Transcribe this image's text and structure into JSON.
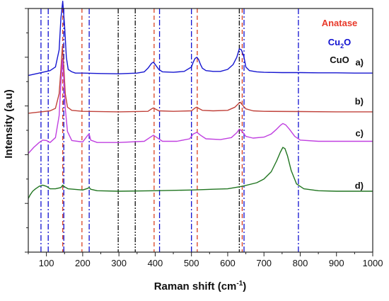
{
  "chart_data": {
    "type": "line",
    "title": "",
    "xlabel": "Raman shift (cm",
    "xlabel_sup": "-1",
    "xlabel_tail": ")",
    "ylabel": "Intensity (a.u)",
    "xlim": [
      50,
      1000
    ],
    "ylim": [
      0,
      10
    ],
    "xticks": [
      100,
      200,
      300,
      400,
      500,
      600,
      700,
      800,
      900,
      1000
    ],
    "grid": false,
    "legend": {
      "placement": "top-right",
      "entries": [
        {
          "text": "Anatase",
          "sub": "",
          "tail": "",
          "color": "#e8392a"
        },
        {
          "text": "Cu",
          "sub": "2",
          "tail": "O",
          "color": "#1010d0"
        },
        {
          "text": "CuO",
          "sub": "",
          "tail": "",
          "color": "#111111"
        }
      ]
    },
    "reference_lines": {
      "anatase": {
        "color": "#d94020",
        "x": [
          145,
          198,
          397,
          516,
          640
        ]
      },
      "cu2o": {
        "color": "#1010d0",
        "x": [
          85,
          105,
          148,
          218,
          412,
          500,
          645,
          795
        ]
      },
      "cuo": {
        "color": "#111111",
        "x": [
          298,
          345,
          632
        ]
      }
    },
    "series": [
      {
        "label": "a)",
        "color": "#1515d0",
        "x": [
          50,
          80,
          110,
          125,
          135,
          140,
          145,
          150,
          155,
          160,
          170,
          180,
          200,
          250,
          300,
          350,
          370,
          380,
          390,
          395,
          400,
          410,
          420,
          450,
          480,
          500,
          505,
          510,
          515,
          520,
          525,
          530,
          540,
          560,
          580,
          600,
          615,
          625,
          632,
          638,
          645,
          650,
          660,
          680,
          700,
          750,
          800,
          850,
          900,
          950,
          1000
        ],
        "y": [
          7.25,
          7.35,
          7.45,
          7.6,
          8.3,
          9.6,
          10.3,
          9.3,
          8.0,
          7.5,
          7.4,
          7.35,
          7.35,
          7.33,
          7.32,
          7.35,
          7.4,
          7.55,
          7.75,
          7.8,
          7.7,
          7.5,
          7.4,
          7.38,
          7.42,
          7.6,
          7.8,
          7.95,
          8.0,
          7.9,
          7.7,
          7.55,
          7.45,
          7.42,
          7.42,
          7.5,
          7.7,
          8.0,
          8.35,
          8.3,
          8.0,
          7.6,
          7.45,
          7.4,
          7.38,
          7.37,
          7.37,
          7.36,
          7.36,
          7.35,
          7.35
        ]
      },
      {
        "label": "b)",
        "color": "#c0413a",
        "x": [
          50,
          80,
          110,
          125,
          135,
          140,
          144,
          148,
          152,
          158,
          170,
          200,
          300,
          380,
          390,
          395,
          400,
          410,
          450,
          500,
          510,
          515,
          520,
          530,
          560,
          600,
          620,
          630,
          635,
          640,
          650,
          670,
          700,
          800,
          900,
          1000
        ],
        "y": [
          5.7,
          5.75,
          5.8,
          5.9,
          6.5,
          7.5,
          8.45,
          7.6,
          6.5,
          5.95,
          5.82,
          5.78,
          5.76,
          5.78,
          5.88,
          5.92,
          5.88,
          5.8,
          5.78,
          5.8,
          5.92,
          5.95,
          5.9,
          5.82,
          5.8,
          5.82,
          5.95,
          6.1,
          6.15,
          6.05,
          5.88,
          5.8,
          5.78,
          5.77,
          5.76,
          5.76
        ]
      },
      {
        "label": "c)",
        "color": "#c040e0",
        "x": [
          50,
          65,
          80,
          90,
          100,
          110,
          125,
          135,
          140,
          144,
          148,
          152,
          158,
          170,
          200,
          214,
          218,
          222,
          240,
          300,
          370,
          385,
          395,
          405,
          420,
          460,
          495,
          505,
          515,
          525,
          540,
          580,
          610,
          625,
          632,
          640,
          650,
          670,
          700,
          720,
          735,
          745,
          752,
          760,
          770,
          785,
          800,
          850,
          900,
          950,
          1000
        ],
        "y": [
          4.05,
          4.3,
          4.5,
          4.6,
          4.58,
          4.5,
          4.7,
          5.6,
          6.9,
          7.9,
          7.1,
          5.9,
          4.95,
          4.58,
          4.52,
          4.8,
          4.85,
          4.6,
          4.5,
          4.5,
          4.55,
          4.7,
          4.8,
          4.7,
          4.55,
          4.55,
          4.65,
          4.85,
          4.92,
          4.8,
          4.65,
          4.62,
          4.7,
          4.9,
          5.05,
          4.95,
          4.75,
          4.68,
          4.72,
          4.85,
          5.05,
          5.2,
          5.28,
          5.22,
          5.05,
          4.75,
          4.6,
          4.55,
          4.55,
          4.55,
          4.55
        ]
      },
      {
        "label": "d)",
        "color": "#207520",
        "x": [
          50,
          55,
          62,
          70,
          80,
          90,
          100,
          110,
          125,
          140,
          145,
          150,
          160,
          200,
          214,
          218,
          222,
          240,
          300,
          400,
          500,
          560,
          600,
          640,
          680,
          700,
          720,
          735,
          745,
          752,
          758,
          765,
          775,
          790,
          810,
          850,
          900,
          950,
          1000
        ],
        "y": [
          2.2,
          2.35,
          2.5,
          2.6,
          2.7,
          2.75,
          2.7,
          2.6,
          2.6,
          2.65,
          2.75,
          2.68,
          2.6,
          2.55,
          2.62,
          2.65,
          2.58,
          2.52,
          2.5,
          2.52,
          2.55,
          2.58,
          2.6,
          2.7,
          2.85,
          3.0,
          3.3,
          3.75,
          4.1,
          4.3,
          4.25,
          3.95,
          3.35,
          2.8,
          2.6,
          2.52,
          2.5,
          2.5,
          2.5
        ]
      }
    ]
  }
}
